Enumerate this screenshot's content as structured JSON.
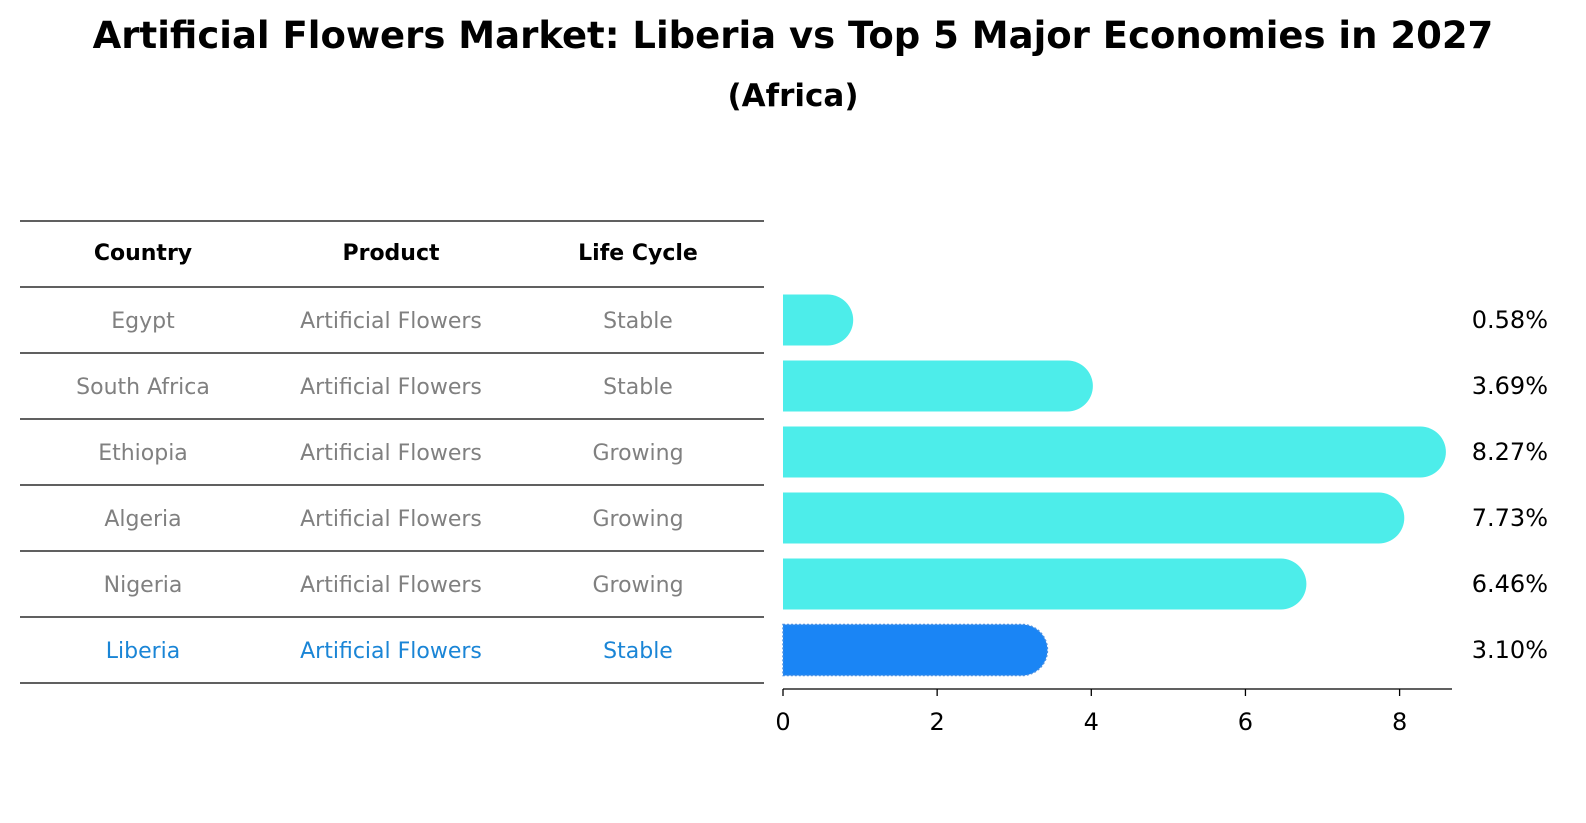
{
  "chart_data": {
    "type": "bar",
    "orientation": "horizontal",
    "title": "Artificial Flowers Market: Liberia vs Top 5 Major Economies in 2027",
    "subtitle": "(Africa)",
    "table": {
      "headers": [
        "Country",
        "Product",
        "Life Cycle"
      ],
      "rows": [
        [
          "Egypt",
          "Artificial Flowers",
          "Stable"
        ],
        [
          "South Africa",
          "Artificial Flowers",
          "Stable"
        ],
        [
          "Ethiopia",
          "Artificial Flowers",
          "Growing"
        ],
        [
          "Algeria",
          "Artificial Flowers",
          "Growing"
        ],
        [
          "Nigeria",
          "Artificial Flowers",
          "Growing"
        ],
        [
          "Liberia",
          "Artificial Flowers",
          "Stable"
        ]
      ]
    },
    "categories": [
      "Egypt",
      "South Africa",
      "Ethiopia",
      "Algeria",
      "Nigeria",
      "Liberia"
    ],
    "values": [
      0.58,
      3.69,
      8.27,
      7.73,
      6.46,
      3.1
    ],
    "value_labels": [
      "0.58%",
      "3.69%",
      "8.27%",
      "7.73%",
      "6.46%",
      "3.10%"
    ],
    "highlight": "Liberia",
    "xlim": [
      0,
      8.68
    ],
    "xticks": [
      "0",
      "2",
      "4",
      "6",
      "8"
    ],
    "colors": {
      "bar": "#4DEDEA",
      "highlight": "#1A85F5",
      "table_text": "#808080",
      "highlight_text": "#1A85D6",
      "header_text": "#000000",
      "rule": "#000000"
    }
  }
}
